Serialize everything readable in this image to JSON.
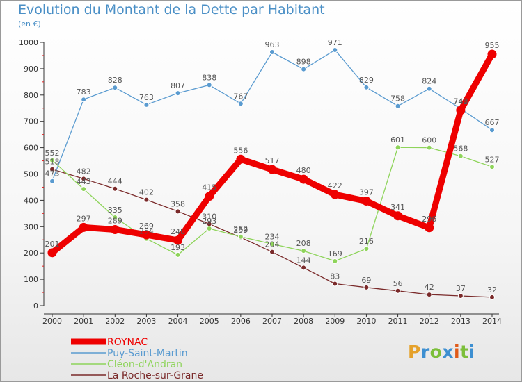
{
  "title": "Evolution du Montant de la Dette par Habitant",
  "subtitle": "(en €)",
  "logo": {
    "text": "Proxiti",
    "colors": [
      "#e5a12b",
      "#3d8fd1",
      "#7cbf3a",
      "#3d8fd1",
      "#e05b1a",
      "#7cbf3a",
      "#3d8fd1"
    ]
  },
  "chart_data": {
    "type": "line",
    "x": [
      2000,
      2001,
      2002,
      2003,
      2004,
      2005,
      2006,
      2007,
      2008,
      2009,
      2010,
      2011,
      2012,
      2013,
      2014
    ],
    "ylim": [
      0,
      1000
    ],
    "yticks": [
      0,
      100,
      200,
      300,
      400,
      500,
      600,
      700,
      800,
      900,
      1000
    ],
    "grid": false,
    "legend": "bottom-left",
    "series": [
      {
        "name": "La Roche-sur-Grane",
        "color": "#7a2a2a",
        "values": [
          518,
          482,
          444,
          402,
          358,
          310,
          259,
          204,
          144,
          83,
          69,
          56,
          42,
          37,
          32
        ]
      },
      {
        "name": "Cléon-d'Andran",
        "color": "#8ed45a",
        "values": [
          552,
          443,
          335,
          254,
          193,
          293,
          262,
          234,
          208,
          169,
          216,
          601,
          600,
          568,
          527
        ]
      },
      {
        "name": "Puy-Saint-Martin",
        "color": "#5a9bd0",
        "values": [
          473,
          783,
          828,
          763,
          807,
          838,
          767,
          963,
          898,
          971,
          829,
          758,
          824,
          748,
          667
        ]
      },
      {
        "name": "ROYNAC",
        "color": "#ee0000",
        "values": [
          201,
          297,
          289,
          269,
          248,
          415,
          556,
          517,
          480,
          422,
          397,
          341,
          296,
          742,
          955
        ]
      }
    ],
    "legend_order": [
      "ROYNAC",
      "Puy-Saint-Martin",
      "Cléon-d'Andran",
      "La Roche-sur-Grane"
    ]
  }
}
